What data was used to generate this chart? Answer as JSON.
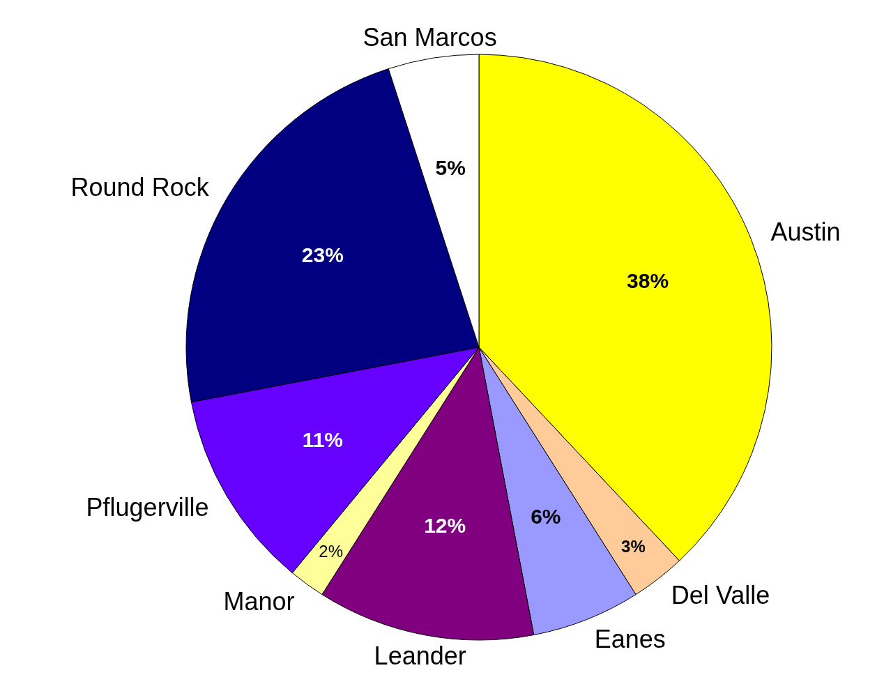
{
  "chart_data": {
    "type": "pie",
    "categories": [
      "Austin",
      "Del Valle",
      "Eanes",
      "Leander",
      "Manor",
      "Pflugerville",
      "Round Rock",
      "San Marcos"
    ],
    "values": [
      38,
      3,
      6,
      12,
      2,
      11,
      23,
      5
    ],
    "value_labels": [
      "38%",
      "3%",
      "6%",
      "12%",
      "2%",
      "11%",
      "23%",
      "5%"
    ],
    "colors": [
      "#ffff00",
      "#ffcc99",
      "#9999ff",
      "#800080",
      "#ffff99",
      "#6600ff",
      "#000080",
      "#ffffff"
    ],
    "legend": false
  }
}
